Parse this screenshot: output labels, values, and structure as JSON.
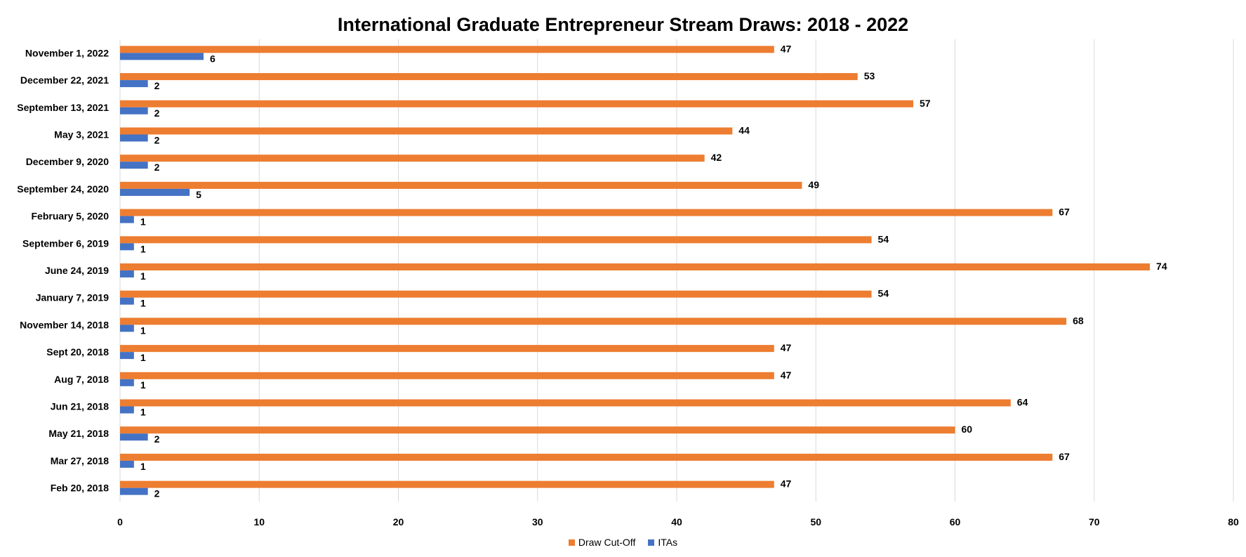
{
  "chart_data": {
    "type": "bar",
    "orientation": "horizontal",
    "title": "International Graduate Entrepreneur Stream Draws: 2018 - 2022",
    "categories": [
      "November 1, 2022",
      "December 22, 2021",
      "September 13, 2021",
      "May 3, 2021",
      "December 9, 2020",
      "September 24, 2020",
      "February 5, 2020",
      "September 6, 2019",
      "June 24, 2019",
      "January 7, 2019",
      "November 14, 2018",
      "Sept 20, 2018",
      "Aug 7, 2018",
      "Jun 21, 2018",
      "May 21, 2018",
      "Mar 27, 2018",
      "Feb 20, 2018"
    ],
    "series": [
      {
        "name": "Draw Cut-Off",
        "color": "#ED7D31",
        "values": [
          47,
          53,
          57,
          44,
          42,
          49,
          67,
          54,
          74,
          54,
          68,
          47,
          47,
          64,
          60,
          67,
          47
        ]
      },
      {
        "name": "ITAs",
        "color": "#4472C4",
        "values": [
          6,
          2,
          2,
          2,
          2,
          5,
          1,
          1,
          1,
          1,
          1,
          1,
          1,
          1,
          2,
          1,
          2
        ]
      }
    ],
    "xlim": [
      0,
      80
    ],
    "xticks": [
      "0",
      "10",
      "20",
      "30",
      "40",
      "50",
      "60",
      "70",
      "80"
    ],
    "grid": true,
    "legend": "bottom",
    "data_labels": true
  }
}
